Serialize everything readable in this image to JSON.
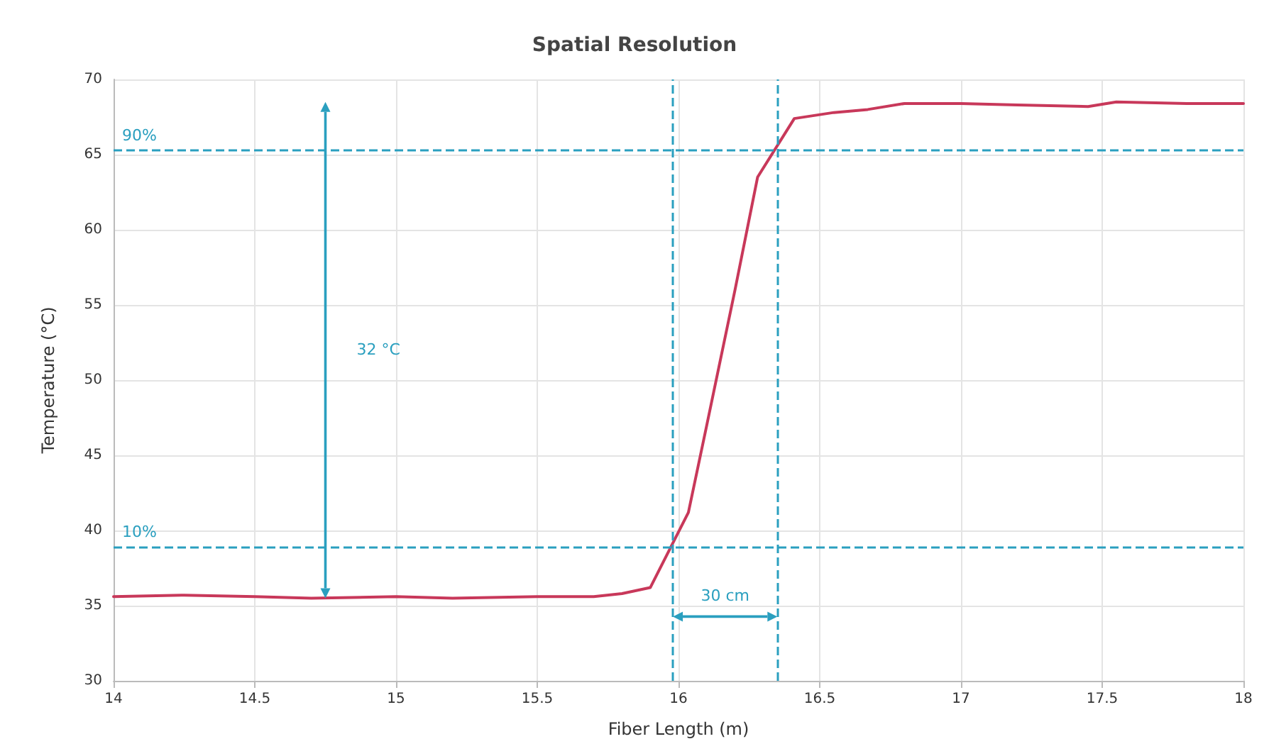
{
  "chart_data": {
    "type": "line",
    "title": "Spatial Resolution",
    "xlabel": "Fiber Length (m)",
    "ylabel": "Temperature (°C)",
    "x": [
      14,
      14.25,
      14.5,
      14.7,
      15,
      15.2,
      15.5,
      15.7,
      15.8,
      15.9,
      16.035,
      16.1,
      16.2,
      16.28,
      16.41,
      16.55,
      16.67,
      16.8,
      17,
      17.2,
      17.45,
      17.55,
      17.8,
      18
    ],
    "series": [
      {
        "color": "#c8385a",
        "values": [
          35.6,
          35.7,
          35.6,
          35.5,
          35.6,
          35.5,
          35.6,
          35.6,
          35.8,
          36.2,
          41.2,
          47,
          56,
          63.5,
          67.4,
          67.8,
          68.0,
          68.4,
          68.4,
          68.3,
          68.2,
          68.5,
          68.4,
          68.4
        ]
      }
    ],
    "xlim": [
      14,
      18
    ],
    "xticks": [
      14,
      14.5,
      15,
      15.5,
      16,
      16.5,
      17,
      17.5,
      18
    ],
    "ylim": [
      30,
      70
    ],
    "yticks": [
      30,
      35,
      40,
      45,
      50,
      55,
      60,
      65,
      70
    ],
    "ref_lines": [
      {
        "axis": "y",
        "value": 65.3,
        "color": "#2a9fbf",
        "line_style": "dashed"
      },
      {
        "axis": "y",
        "value": 38.9,
        "color": "#2a9fbf",
        "line_style": "dashed"
      },
      {
        "axis": "x",
        "value": 15.98,
        "color": "#2a9fbf",
        "line_style": "dashed"
      },
      {
        "axis": "x",
        "value": 16.35,
        "color": "#2a9fbf",
        "line_style": "dashed"
      }
    ],
    "annotations": [
      "32 °C",
      "30 cm",
      "90%",
      "10%"
    ],
    "grid": true,
    "marker": "none",
    "line_style": "solid"
  }
}
